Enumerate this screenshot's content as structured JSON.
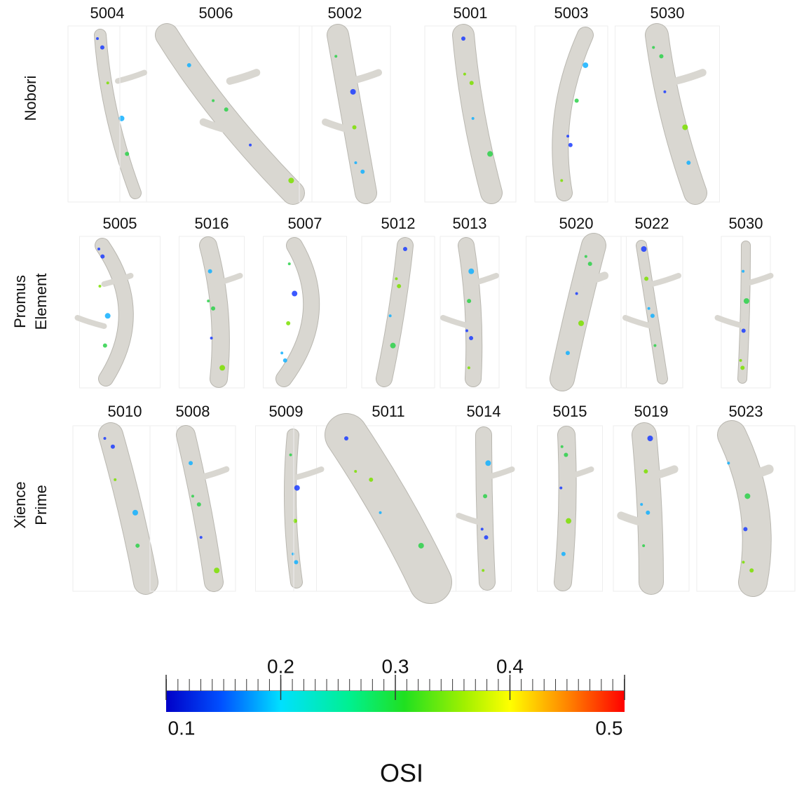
{
  "rows": [
    {
      "label": [
        "Nobori"
      ],
      "items": [
        "5004",
        "5006",
        "5002",
        "5001",
        "5003",
        "5030"
      ]
    },
    {
      "label": [
        "Promus",
        "Element"
      ],
      "items": [
        "5005",
        "5016",
        "5007",
        "5012",
        "5013",
        "5020",
        "5022",
        "5030"
      ]
    },
    {
      "label": [
        "Xience",
        "Prime"
      ],
      "items": [
        "5010",
        "5008",
        "5009",
        "5011",
        "5014",
        "5015",
        "5019",
        "5023"
      ]
    }
  ],
  "colorbar": {
    "title": "OSI",
    "range": [
      0.1,
      0.5
    ],
    "ticks": [
      0.1,
      0.2,
      0.3,
      0.4,
      0.5
    ]
  }
}
